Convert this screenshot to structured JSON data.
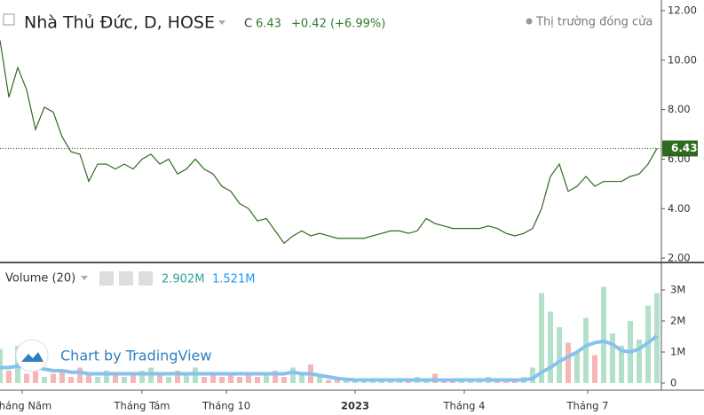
{
  "chart_data": [
    {
      "type": "line",
      "title": "Nhà Thủ Đức, D, HOSE",
      "close_label": "C",
      "close_value": "6.43",
      "change": "+0.42 (+6.99%)",
      "status": "Thị trường đóng cửa",
      "color": "#2e6b1f",
      "values": [
        10.8,
        8.5,
        9.7,
        8.8,
        7.2,
        8.1,
        7.9,
        6.9,
        6.3,
        6.2,
        5.1,
        5.8,
        5.8,
        5.6,
        5.8,
        5.6,
        6.0,
        6.2,
        5.8,
        6.0,
        5.4,
        5.6,
        6.0,
        5.6,
        5.4,
        4.9,
        4.7,
        4.2,
        4.0,
        3.5,
        3.6,
        3.1,
        2.6,
        2.9,
        3.1,
        2.9,
        3.0,
        2.9,
        2.8,
        2.8,
        2.8,
        2.8,
        2.9,
        3.0,
        3.1,
        3.1,
        3.0,
        3.1,
        3.6,
        3.4,
        3.3,
        3.2,
        3.2,
        3.2,
        3.2,
        3.3,
        3.2,
        3.0,
        2.9,
        3.0,
        3.2,
        4.0,
        5.3,
        5.8,
        4.7,
        4.9,
        5.3,
        4.9,
        5.1,
        5.1,
        5.1,
        5.3,
        5.4,
        5.8,
        6.43
      ],
      "last_value": {
        "value": 6.43,
        "label": "6.43"
      },
      "xlim": [
        0,
        74
      ],
      "xticks": [
        {
          "value": 2.5,
          "label": "Tháng Năm"
        },
        {
          "value": 16,
          "label": "Tháng Tám"
        },
        {
          "value": 25.5,
          "label": "Tháng 10"
        },
        {
          "value": 40,
          "label": "2023"
        },
        {
          "value": 52.3,
          "label": "Tháng 4"
        },
        {
          "value": 66.2,
          "label": "Tháng 7"
        }
      ],
      "ylim": [
        1.86,
        12.43
      ],
      "yticks": [
        {
          "value": 2,
          "label": "2.00"
        },
        {
          "value": 4,
          "label": "4.00"
        },
        {
          "value": 6,
          "label": "6.00"
        },
        {
          "value": 8,
          "label": "8.00"
        },
        {
          "value": 10,
          "label": "10.00"
        },
        {
          "value": 12,
          "label": "12.00"
        }
      ]
    },
    {
      "type": "bar",
      "title": "Volume (20)",
      "volume_value": "2.902M",
      "ma_value": "1.521M",
      "watermark": "Chart by TradingView",
      "up_color": "#a6dbc0",
      "down_color": "#f5a9a8",
      "ma_color": "#87c2ee",
      "values": [
        1.1,
        0.4,
        1.2,
        0.3,
        0.6,
        0.2,
        0.3,
        0.4,
        0.2,
        0.5,
        0.3,
        0.2,
        0.4,
        0.3,
        0.2,
        0.3,
        0.4,
        0.5,
        0.3,
        0.2,
        0.4,
        0.3,
        0.5,
        0.2,
        0.3,
        0.2,
        0.3,
        0.2,
        0.3,
        0.2,
        0.3,
        0.4,
        0.2,
        0.5,
        0.3,
        0.6,
        0.2,
        0.1,
        0.1,
        0.1,
        0.1,
        0.1,
        0.1,
        0.1,
        0.1,
        0.1,
        0.1,
        0.2,
        0.1,
        0.3,
        0.1,
        0.1,
        0.1,
        0.1,
        0.1,
        0.2,
        0.1,
        0.1,
        0.1,
        0.2,
        0.5,
        2.9,
        2.3,
        1.8,
        1.3,
        1.0,
        2.1,
        0.9,
        3.1,
        1.6,
        1.2,
        2.0,
        1.4,
        2.5,
        2.9
      ],
      "ma": [
        0.5,
        0.5,
        0.55,
        0.5,
        0.5,
        0.45,
        0.4,
        0.4,
        0.35,
        0.35,
        0.3,
        0.3,
        0.3,
        0.3,
        0.3,
        0.3,
        0.3,
        0.3,
        0.3,
        0.3,
        0.3,
        0.3,
        0.3,
        0.3,
        0.3,
        0.3,
        0.3,
        0.3,
        0.3,
        0.3,
        0.3,
        0.3,
        0.3,
        0.35,
        0.3,
        0.3,
        0.25,
        0.2,
        0.15,
        0.12,
        0.1,
        0.1,
        0.1,
        0.1,
        0.1,
        0.1,
        0.1,
        0.1,
        0.1,
        0.1,
        0.1,
        0.1,
        0.1,
        0.1,
        0.1,
        0.1,
        0.1,
        0.1,
        0.1,
        0.1,
        0.15,
        0.35,
        0.5,
        0.7,
        0.85,
        1.0,
        1.2,
        1.3,
        1.35,
        1.25,
        1.05,
        1.0,
        1.1,
        1.3,
        1.52
      ],
      "ylim": [
        0,
        3.77
      ],
      "yticks": [
        {
          "value": 0,
          "label": "0"
        },
        {
          "value": 1,
          "label": "1M"
        },
        {
          "value": 2,
          "label": "2M"
        },
        {
          "value": 3,
          "label": "3M"
        }
      ]
    }
  ]
}
